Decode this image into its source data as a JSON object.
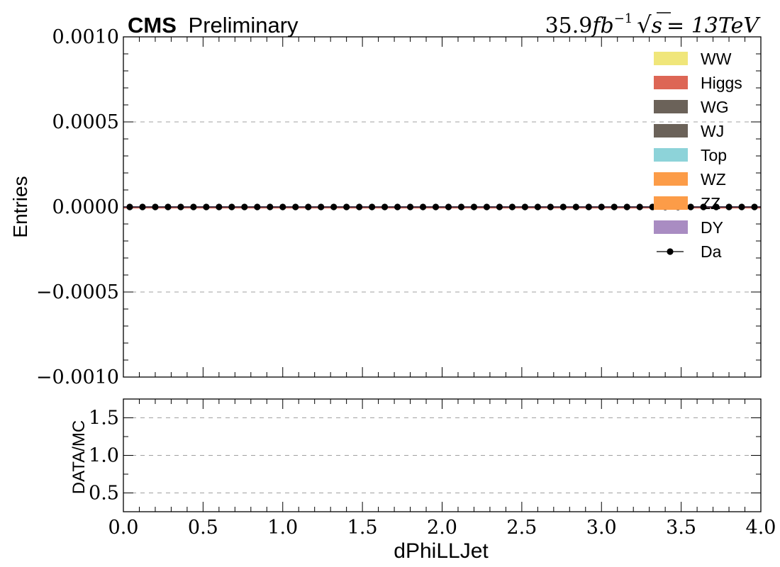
{
  "header": {
    "experiment": "CMS",
    "status": "Preliminary",
    "lumi_value": "35.9",
    "lumi_unit": "fb",
    "lumi_exp": "−1",
    "sqrt_s_label": "s",
    "energy": "= 13TeV"
  },
  "chart_data": [
    {
      "panel": "main",
      "type": "line",
      "ylabel": "Entries",
      "xlim": [
        0.0,
        4.0
      ],
      "ylim": [
        -0.001,
        0.001
      ],
      "yticks": [
        -0.001,
        -0.0005,
        0.0,
        0.0005,
        0.001
      ],
      "ytick_labels": [
        "−0.0010",
        "−0.0005",
        "0.0000",
        "0.0005",
        "0.0010"
      ],
      "grid": "dashed-horizontal",
      "legend_placement": "top-right",
      "legend": [
        {
          "name": "WW",
          "color": "#f0e67a"
        },
        {
          "name": "Higgs",
          "color": "#dd6655"
        },
        {
          "name": "WG",
          "color": "#6b6259"
        },
        {
          "name": "WJ",
          "color": "#6b6259"
        },
        {
          "name": "Top",
          "color": "#8dd3d9"
        },
        {
          "name": "WZ",
          "color": "#fc9c48"
        },
        {
          "name": "ZZ",
          "color": "#fc9c48"
        },
        {
          "name": "DY",
          "color": "#a98cc2"
        },
        {
          "name": "Da",
          "color": "#000000",
          "marker": "point"
        }
      ],
      "data_points": {
        "name": "Da",
        "x": [
          0.04,
          0.12,
          0.2,
          0.28,
          0.36,
          0.44,
          0.52,
          0.6,
          0.68,
          0.76,
          0.84,
          0.92,
          1.0,
          1.08,
          1.16,
          1.24,
          1.32,
          1.4,
          1.48,
          1.56,
          1.64,
          1.72,
          1.8,
          1.88,
          1.96,
          2.04,
          2.12,
          2.2,
          2.28,
          2.36,
          2.44,
          2.52,
          2.6,
          2.68,
          2.76,
          2.84,
          2.92,
          3.0,
          3.08,
          3.16,
          3.24,
          3.32,
          3.4,
          3.48,
          3.56,
          3.64,
          3.72,
          3.8,
          3.88,
          3.96
        ],
        "y": [
          0,
          0,
          0,
          0,
          0,
          0,
          0,
          0,
          0,
          0,
          0,
          0,
          0,
          0,
          0,
          0,
          0,
          0,
          0,
          0,
          0,
          0,
          0,
          0,
          0,
          0,
          0,
          0,
          0,
          0,
          0,
          0,
          0,
          0,
          0,
          0,
          0,
          0,
          0,
          0,
          0,
          0,
          0,
          0,
          0,
          0,
          0,
          0,
          0,
          0
        ]
      },
      "mc_total": 0
    },
    {
      "panel": "ratio",
      "type": "scatter",
      "xlabel": "dPhiLLJet",
      "ylabel": "DATA/MC",
      "xlim": [
        0.0,
        4.0
      ],
      "ylim": [
        0.25,
        1.75
      ],
      "yticks": [
        0.5,
        1.0,
        1.5
      ],
      "ytick_labels": [
        "0.5",
        "1.0",
        "1.5"
      ],
      "xticks": [
        0.0,
        0.5,
        1.0,
        1.5,
        2.0,
        2.5,
        3.0,
        3.5,
        4.0
      ],
      "xtick_labels": [
        "0.0",
        "0.5",
        "1.0",
        "1.5",
        "2.0",
        "2.5",
        "3.0",
        "3.5",
        "4.0"
      ],
      "grid": "dashed-horizontal",
      "points": []
    }
  ]
}
